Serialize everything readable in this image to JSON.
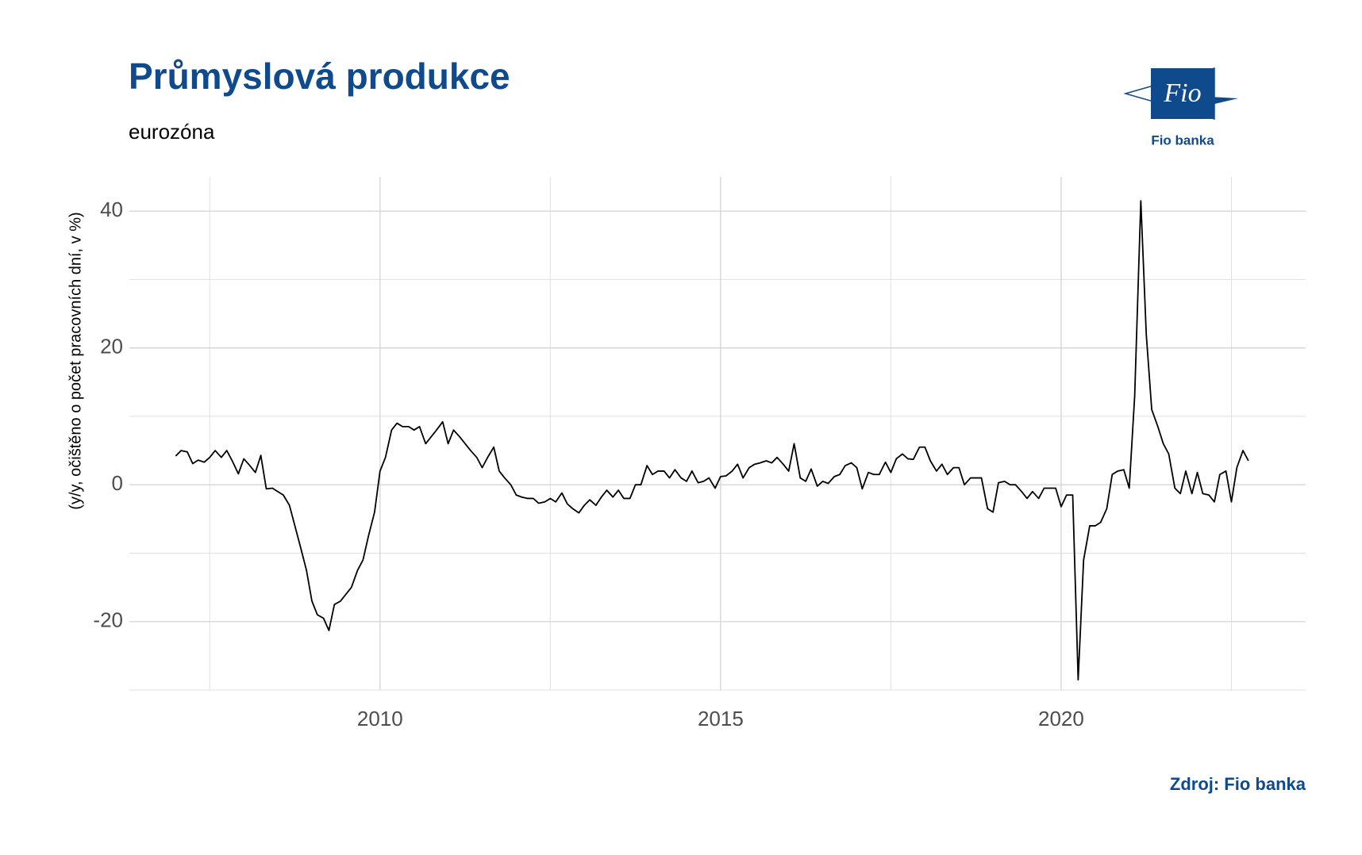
{
  "chart_data": {
    "type": "line",
    "title": "Průmyslová produkce",
    "subtitle": "eurozóna",
    "y_label": "(y/y, očištěno o počet pracovních dní, v %)",
    "source": "Zdroj: Fio banka",
    "logo": {
      "mark": "Fio",
      "name": "Fio banka"
    },
    "xlim": [
      2006.32,
      2023.59
    ],
    "ylim": [
      -30,
      45
    ],
    "xticks": [
      2010,
      2015,
      2020
    ],
    "yticks": [
      -20,
      0,
      20,
      40
    ],
    "x_minor_grid": [
      2007.5,
      2012.5,
      2017.5,
      2022.5
    ],
    "y_minor_grid": [
      -30,
      -10,
      10,
      30
    ],
    "grid": true,
    "series": [
      {
        "color": "#000000",
        "x": [
          2007.0,
          2007.08,
          2007.17,
          2007.25,
          2007.33,
          2007.42,
          2007.5,
          2007.58,
          2007.67,
          2007.75,
          2007.83,
          2007.92,
          2008.0,
          2008.08,
          2008.17,
          2008.25,
          2008.33,
          2008.42,
          2008.5,
          2008.58,
          2008.67,
          2008.75,
          2008.83,
          2008.92,
          2009.0,
          2009.08,
          2009.17,
          2009.25,
          2009.33,
          2009.42,
          2009.5,
          2009.58,
          2009.67,
          2009.75,
          2009.83,
          2009.92,
          2010.0,
          2010.08,
          2010.17,
          2010.25,
          2010.33,
          2010.42,
          2010.5,
          2010.58,
          2010.67,
          2010.75,
          2010.83,
          2010.92,
          2011.0,
          2011.08,
          2011.17,
          2011.25,
          2011.33,
          2011.42,
          2011.5,
          2011.58,
          2011.67,
          2011.75,
          2011.83,
          2011.92,
          2012.0,
          2012.08,
          2012.17,
          2012.25,
          2012.33,
          2012.42,
          2012.5,
          2012.58,
          2012.67,
          2012.75,
          2012.83,
          2012.92,
          2013.0,
          2013.08,
          2013.17,
          2013.25,
          2013.33,
          2013.42,
          2013.5,
          2013.58,
          2013.67,
          2013.75,
          2013.83,
          2013.92,
          2014.0,
          2014.08,
          2014.17,
          2014.25,
          2014.33,
          2014.42,
          2014.5,
          2014.58,
          2014.67,
          2014.75,
          2014.83,
          2014.92,
          2015.0,
          2015.08,
          2015.17,
          2015.25,
          2015.33,
          2015.42,
          2015.5,
          2015.58,
          2015.67,
          2015.75,
          2015.83,
          2015.92,
          2016.0,
          2016.08,
          2016.17,
          2016.25,
          2016.33,
          2016.42,
          2016.5,
          2016.58,
          2016.67,
          2016.75,
          2016.83,
          2016.92,
          2017.0,
          2017.08,
          2017.17,
          2017.25,
          2017.33,
          2017.42,
          2017.5,
          2017.58,
          2017.67,
          2017.75,
          2017.83,
          2017.92,
          2018.0,
          2018.08,
          2018.17,
          2018.25,
          2018.33,
          2018.42,
          2018.5,
          2018.58,
          2018.67,
          2018.75,
          2018.83,
          2018.92,
          2019.0,
          2019.08,
          2019.17,
          2019.25,
          2019.33,
          2019.42,
          2019.5,
          2019.58,
          2019.67,
          2019.75,
          2019.83,
          2019.92,
          2020.0,
          2020.08,
          2020.17,
          2020.25,
          2020.33,
          2020.42,
          2020.5,
          2020.58,
          2020.67,
          2020.75,
          2020.83,
          2020.92,
          2021.0,
          2021.08,
          2021.17,
          2021.25,
          2021.33,
          2021.42,
          2021.5,
          2021.58,
          2021.67,
          2021.75,
          2021.83,
          2021.92,
          2022.0,
          2022.08,
          2022.17,
          2022.25,
          2022.33,
          2022.42,
          2022.5,
          2022.58,
          2022.67,
          2022.75
        ],
        "values": [
          4.2,
          5,
          4.8,
          3.1,
          3.6,
          3.3,
          4,
          5,
          4,
          5,
          3.5,
          1.6,
          3.8,
          2.9,
          1.8,
          4.3,
          -0.6,
          -0.5,
          -1,
          -1.5,
          -3,
          -6,
          -9,
          -12.5,
          -17,
          -19,
          -19.5,
          -21.3,
          -17.5,
          -17,
          -16,
          -15,
          -12.5,
          -11,
          -7.5,
          -4,
          2,
          4,
          8,
          9,
          8.5,
          8.5,
          8,
          8.5,
          6,
          7,
          8,
          9.2,
          6,
          8,
          7,
          6,
          5,
          4,
          2.5,
          4,
          5.5,
          2,
          1,
          0,
          -1.5,
          -1.8,
          -2,
          -2,
          -2.7,
          -2.5,
          -2,
          -2.5,
          -1.2,
          -2.8,
          -3.5,
          -4.1,
          -3,
          -2.2,
          -3,
          -1.8,
          -0.8,
          -1.8,
          -0.8,
          -2,
          -2,
          0,
          0,
          2.8,
          1.5,
          2,
          2,
          1,
          2.2,
          1,
          0.5,
          2,
          0.3,
          0.5,
          1,
          -0.5,
          1.2,
          1.3,
          2,
          3,
          1,
          2.5,
          3,
          3.2,
          3.5,
          3.2,
          4,
          3,
          2,
          6,
          1,
          0.5,
          2.3,
          -0.2,
          0.5,
          0.2,
          1.2,
          1.5,
          2.8,
          3.2,
          2.5,
          -0.6,
          1.8,
          1.5,
          1.5,
          3.3,
          1.8,
          3.8,
          4.5,
          3.8,
          3.7,
          5.5,
          5.5,
          3.5,
          2,
          3,
          1.5,
          2.5,
          2.5,
          0,
          1,
          1,
          1,
          -3.5,
          -4,
          0.3,
          0.5,
          0,
          0,
          -1,
          -2,
          -1,
          -2,
          -0.5,
          -0.5,
          -0.5,
          -3.2,
          -1.5,
          -1.5,
          -28.5,
          -11,
          -6,
          -6,
          -5.5,
          -3.5,
          1.5,
          2,
          2.2,
          -0.5,
          13,
          41.5,
          22,
          11,
          8.5,
          6,
          4.5,
          -0.5,
          -1.3,
          2,
          -1.3,
          1.8,
          -1.3,
          -1.5,
          -2.5,
          1.5,
          2,
          -2.5,
          2.5,
          5,
          3.5
        ]
      }
    ]
  }
}
